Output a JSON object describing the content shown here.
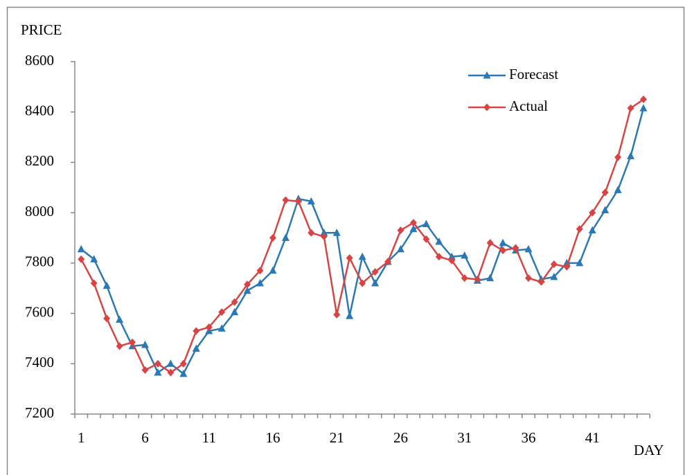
{
  "chart_data": {
    "type": "line",
    "y_label": "PRICE",
    "x_label": "DAY",
    "categories": [
      "1",
      null,
      null,
      null,
      null,
      "6",
      null,
      null,
      null,
      null,
      "11",
      null,
      null,
      null,
      null,
      "16",
      null,
      null,
      null,
      null,
      "21",
      null,
      null,
      null,
      null,
      "26",
      null,
      null,
      null,
      null,
      "31",
      null,
      null,
      null,
      null,
      "36",
      null,
      null,
      null,
      null,
      "41",
      null,
      null,
      null,
      null
    ],
    "series": [
      {
        "name": "Forecast",
        "color": "#2a78b4",
        "marker": "triangle",
        "values": [
          7855,
          7815,
          7710,
          7575,
          7470,
          7475,
          7365,
          7400,
          7360,
          7460,
          7530,
          7540,
          7605,
          7690,
          7720,
          7770,
          7900,
          8055,
          8045,
          7920,
          7920,
          7590,
          7825,
          7720,
          7805,
          7855,
          7935,
          7955,
          7885,
          7825,
          7830,
          7730,
          7740,
          7880,
          7850,
          7855,
          7735,
          7745,
          7800,
          7800,
          7930,
          8010,
          8090,
          8225,
          8415
        ]
      },
      {
        "name": "Actual",
        "color": "#d84444",
        "marker": "diamond",
        "values": [
          7815,
          7720,
          7580,
          7470,
          7485,
          7375,
          7400,
          7365,
          7400,
          7530,
          7545,
          7605,
          7645,
          7715,
          7770,
          7900,
          8050,
          8045,
          7920,
          7905,
          7595,
          7820,
          7720,
          7765,
          7805,
          7930,
          7960,
          7895,
          7825,
          7810,
          7740,
          7735,
          7880,
          7850,
          7860,
          7740,
          7725,
          7795,
          7785,
          7935,
          8000,
          8080,
          8220,
          8415,
          8450
        ]
      }
    ],
    "ylim": [
      7200,
      8600
    ],
    "yticks": [
      7200,
      7400,
      7600,
      7800,
      8000,
      8200,
      8400,
      8600
    ],
    "grid": false,
    "legend": "top-right"
  }
}
